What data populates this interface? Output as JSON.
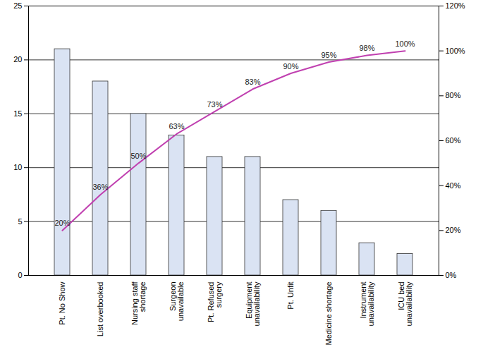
{
  "chart_data": {
    "type": "bar",
    "categories": [
      "Pt. No Show",
      "List overbooked",
      "Nursing staff shortage",
      "Surgeon unavailable",
      "Pt. Refused surgery",
      "Equipment unavailability",
      "Pt. Unfit",
      "Medicine shortage",
      "Instrument unavailability",
      "ICU bed unavailability"
    ],
    "ylim": [
      0,
      25
    ],
    "yticks": [
      0,
      5,
      10,
      15,
      20,
      25
    ],
    "y2lim": [
      0,
      120
    ],
    "y2ticks": [
      {
        "value": 0,
        "label": "0%"
      },
      {
        "value": 20,
        "label": "20%"
      },
      {
        "value": 40,
        "label": "40%"
      },
      {
        "value": 60,
        "label": "60%"
      },
      {
        "value": 80,
        "label": "80%"
      },
      {
        "value": 100,
        "label": "100%"
      },
      {
        "value": 120,
        "label": "120%"
      }
    ],
    "grid": true,
    "series": [
      {
        "type": "bar",
        "color": "#dae3f3",
        "values": [
          21,
          18,
          15,
          13,
          11,
          11,
          7,
          6,
          3,
          2
        ]
      },
      {
        "type": "line",
        "axis": "y2",
        "color": "#c040b0",
        "data_labels": true,
        "values": [
          20,
          36,
          50,
          63,
          73,
          83,
          90,
          95,
          98,
          100
        ],
        "value_labels": [
          "20%",
          "36%",
          "50%",
          "63%",
          "73%",
          "83%",
          "90%",
          "95%",
          "98%",
          "100%"
        ]
      }
    ]
  }
}
